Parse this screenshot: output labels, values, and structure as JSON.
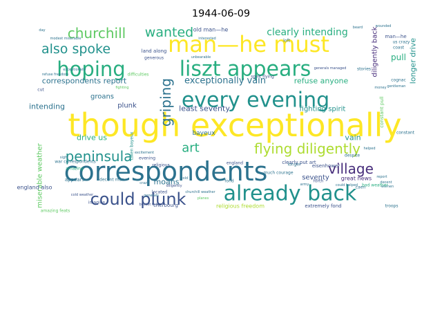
{
  "title": "1944-06-09",
  "palette": [
    "#440154",
    "#472d7b",
    "#3b528b",
    "#2c728e",
    "#21918c",
    "#28ae80",
    "#5ec962",
    "#addc30",
    "#fde725"
  ],
  "words": [
    {
      "text": "though exceptionally",
      "c": 8
    },
    {
      "text": "correspondents",
      "c": 3
    },
    {
      "text": "man—he must",
      "c": 8
    },
    {
      "text": "liszt appears",
      "c": 5
    },
    {
      "text": "already back",
      "c": 4
    },
    {
      "text": "every evening",
      "c": 4
    },
    {
      "text": "hoping",
      "c": 5
    },
    {
      "text": "could plunk",
      "c": 2
    },
    {
      "text": "also spoke",
      "c": 4
    },
    {
      "text": "churchill",
      "c": 6
    },
    {
      "text": "wanted",
      "c": 5
    },
    {
      "text": "flying diligently",
      "c": 7
    },
    {
      "text": "peninsula",
      "c": 4
    },
    {
      "text": "village",
      "c": 1
    },
    {
      "text": "griping",
      "c": 3
    },
    {
      "text": "art",
      "c": 5
    },
    {
      "text": "clearly intending",
      "c": 5
    },
    {
      "text": "exceptionally vain",
      "c": 3
    },
    {
      "text": "correspondents report",
      "c": 3
    },
    {
      "text": "refuse anyone",
      "c": 5
    },
    {
      "text": "diligently back",
      "c": 1
    },
    {
      "text": "longer drive",
      "c": 4
    },
    {
      "text": "least seventy",
      "c": 2
    },
    {
      "text": "drive us",
      "c": 5
    },
    {
      "text": "intending",
      "c": 3
    },
    {
      "text": "groans",
      "c": 3
    },
    {
      "text": "plunk",
      "c": 2
    },
    {
      "text": "pull",
      "c": 5
    },
    {
      "text": "fighting spirit",
      "c": 4
    },
    {
      "text": "moans",
      "c": 3
    },
    {
      "text": "seventy",
      "c": 2
    },
    {
      "text": "vain",
      "c": 4
    },
    {
      "text": "miserable weather",
      "c": 6
    },
    {
      "text": "great news",
      "c": 1
    },
    {
      "text": "clearly put art",
      "c": 2
    },
    {
      "text": "england also",
      "c": 2
    },
    {
      "text": "appears",
      "c": 3
    },
    {
      "text": "much courage",
      "c": 3
    },
    {
      "text": "old man—he",
      "c": 2
    },
    {
      "text": "man—he",
      "c": 2
    },
    {
      "text": "bayeux",
      "c": 3
    },
    {
      "text": "decent man",
      "c": 3
    },
    {
      "text": "war correspondents",
      "c": 3
    },
    {
      "text": "religious",
      "c": 2
    },
    {
      "text": "loft",
      "c": 3
    },
    {
      "text": "stories",
      "c": 3
    },
    {
      "text": "eisenhower",
      "c": 2
    },
    {
      "text": "cold weather",
      "c": 2
    },
    {
      "text": "imagine",
      "c": 2
    },
    {
      "text": "bucket feats",
      "c": 2
    },
    {
      "text": "religious freedom",
      "c": 7
    },
    {
      "text": "extremely fond",
      "c": 2
    },
    {
      "text": "cherbourg",
      "c": 2
    },
    {
      "text": "troops",
      "c": 3
    },
    {
      "text": "despite",
      "c": 3
    },
    {
      "text": "located",
      "c": 2
    },
    {
      "text": "diligently",
      "c": 2
    },
    {
      "text": "crazy",
      "c": 3
    },
    {
      "text": "army",
      "c": 3
    },
    {
      "text": "caen",
      "c": 3
    },
    {
      "text": "decent",
      "c": 3
    },
    {
      "text": "women",
      "c": 3
    },
    {
      "text": "bad weather",
      "c": 5
    },
    {
      "text": "report",
      "c": 3
    },
    {
      "text": "constant",
      "c": 3
    },
    {
      "text": "cognac",
      "c": 3
    },
    {
      "text": "gentleman",
      "c": 3
    },
    {
      "text": "money",
      "c": 3
    },
    {
      "text": "coast",
      "c": 3
    },
    {
      "text": "us crazy",
      "c": 3
    },
    {
      "text": "land along",
      "c": 2
    },
    {
      "text": "generous",
      "c": 2
    },
    {
      "text": "spirit flying",
      "c": 2
    },
    {
      "text": "generals managed",
      "c": 2
    },
    {
      "text": "amazing feats",
      "c": 6
    },
    {
      "text": "refuse freedom",
      "c": 3
    },
    {
      "text": "exceptionally",
      "c": 3
    },
    {
      "text": "fighting",
      "c": 6
    },
    {
      "text": "sight",
      "c": 3
    },
    {
      "text": "cold",
      "c": 3
    },
    {
      "text": "england",
      "c": 2
    },
    {
      "text": "fond",
      "c": 3
    },
    {
      "text": "forth",
      "c": 2
    },
    {
      "text": "helped",
      "c": 3
    },
    {
      "text": "modest miserable",
      "c": 3
    },
    {
      "text": "constant pull",
      "c": 6
    },
    {
      "text": "day",
      "c": 3
    },
    {
      "text": "cut",
      "c": 2
    },
    {
      "text": "taken bayeux",
      "c": 4
    },
    {
      "text": "interested",
      "c": 3
    },
    {
      "text": "beard",
      "c": 3
    },
    {
      "text": "unbearable",
      "c": 3
    },
    {
      "text": "difficulties",
      "c": 6
    },
    {
      "text": "longer",
      "c": 3
    },
    {
      "text": "evening",
      "c": 2
    },
    {
      "text": "amazing",
      "c": 5
    },
    {
      "text": "planes",
      "c": 6
    },
    {
      "text": "generals",
      "c": 3
    },
    {
      "text": "excitement",
      "c": 3
    },
    {
      "text": "churchill weather",
      "c": 3
    },
    {
      "text": "could helped",
      "c": 3
    },
    {
      "text": "wounded",
      "c": 3
    }
  ]
}
